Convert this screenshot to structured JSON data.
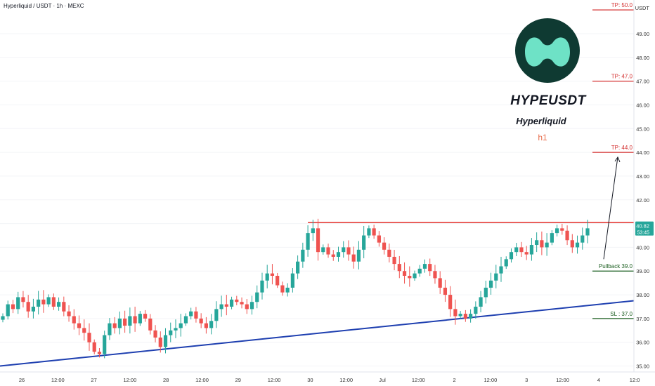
{
  "header": {
    "title": "Hyperliquid / USDT · 1h · MEXC"
  },
  "brand": {
    "symbol": "HYPEUSDT",
    "name": "Hyperliquid",
    "timeframe": "h1",
    "logo_bg": "#0f3a32",
    "logo_fg": "#6ee2c6"
  },
  "price_axis": {
    "currency": "USDT",
    "ticks": [
      "35.00",
      "36.00",
      "37.00",
      "38.00",
      "39.00",
      "40.00",
      "41.00",
      "42.00",
      "43.00",
      "44.00",
      "45.00",
      "46.00",
      "47.00",
      "48.00",
      "49.00"
    ],
    "last_price": "40.82",
    "countdown": "53:45"
  },
  "time_axis": {
    "labels": [
      "26",
      "12:00",
      "27",
      "12:00",
      "28",
      "12:00",
      "29",
      "12:00",
      "30",
      "12:00",
      "Jul",
      "12:00",
      "2",
      "12:00",
      "3",
      "12:00",
      "4",
      "12:0"
    ]
  },
  "chart_data": {
    "type": "candlestick",
    "symbol": "HYPEUSDT",
    "ylim": [
      34.75,
      50.3
    ],
    "levels": [
      {
        "label": "TP: 50.0",
        "value": 50.0,
        "color": "#d32f2f"
      },
      {
        "label": "TP: 47.0",
        "value": 47.0,
        "color": "#d32f2f"
      },
      {
        "label": "TP: 44.0",
        "value": 44.0,
        "color": "#d32f2f"
      },
      {
        "label": "Pullback 39.0",
        "value": 39.0,
        "color": "#1b5e20"
      },
      {
        "label": "SL : 37.0",
        "value": 37.0,
        "color": "#1b5e20"
      }
    ],
    "resistance": {
      "value": 41.05,
      "color": "#e53935"
    },
    "support_trendline": {
      "color": "#1e3fb0"
    },
    "up_color": "#26a69a",
    "down_color": "#ef5350",
    "closes": [
      37.1,
      37.6,
      37.4,
      37.9,
      37.7,
      37.3,
      37.5,
      37.8,
      37.6,
      37.9,
      37.5,
      37.7,
      37.3,
      37.1,
      36.8,
      36.6,
      36.4,
      36.0,
      35.6,
      35.5,
      36.3,
      36.8,
      36.6,
      37.0,
      36.7,
      37.1,
      36.8,
      37.2,
      37.0,
      36.5,
      36.2,
      35.8,
      36.3,
      36.5,
      36.6,
      36.8,
      37.1,
      37.3,
      37.0,
      36.8,
      36.6,
      36.9,
      37.4,
      37.6,
      37.5,
      37.8,
      37.7,
      37.6,
      37.4,
      37.7,
      38.1,
      38.6,
      38.9,
      38.8,
      38.4,
      38.1,
      38.3,
      38.9,
      39.4,
      39.9,
      40.6,
      40.8,
      39.8,
      40.0,
      39.7,
      39.6,
      39.8,
      40.0,
      39.7,
      39.4,
      39.9,
      40.5,
      40.8,
      40.5,
      40.2,
      39.9,
      39.6,
      39.3,
      39.0,
      38.8,
      38.7,
      38.9,
      39.1,
      39.3,
      39.0,
      38.7,
      38.3,
      38.0,
      37.4,
      37.1,
      37.2,
      37.0,
      37.2,
      37.5,
      37.9,
      38.3,
      38.6,
      38.9,
      39.2,
      39.5,
      39.8,
      40.0,
      39.8,
      39.7,
      40.1,
      40.3,
      40.0,
      40.2,
      40.6,
      40.8,
      40.7,
      40.3,
      40.0,
      40.2,
      40.5,
      40.8
    ]
  }
}
